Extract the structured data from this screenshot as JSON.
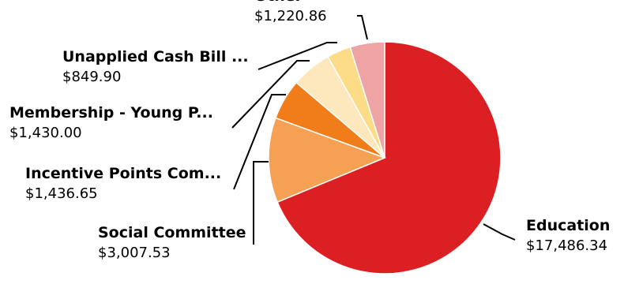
{
  "chart_data": {
    "type": "pie",
    "title": "",
    "colors": {
      "Education": "#dc1f22",
      "Social Committee": "#f6a054",
      "Incentive Points Com...": "#f07d1a",
      "Membership - Young P...": "#fde7bd",
      "Unapplied Cash Bill ...": "#fddc88",
      "Other": "#eea4a4"
    },
    "slices": [
      {
        "label": "Education",
        "value": 17486.34,
        "value_label": "$17,486.34"
      },
      {
        "label": "Social Committee",
        "value": 3007.53,
        "value_label": "$3,007.53"
      },
      {
        "label": "Incentive Points Com...",
        "value": 1436.65,
        "value_label": "$1,436.65"
      },
      {
        "label": "Membership - Young P...",
        "value": 1430.0,
        "value_label": "$1,430.00"
      },
      {
        "label": "Unapplied Cash Bill ...",
        "value": 849.9,
        "value_label": "$849.90"
      },
      {
        "label": "Other",
        "value": 1220.86,
        "value_label": "$1,220.86"
      }
    ],
    "legend": "none"
  }
}
